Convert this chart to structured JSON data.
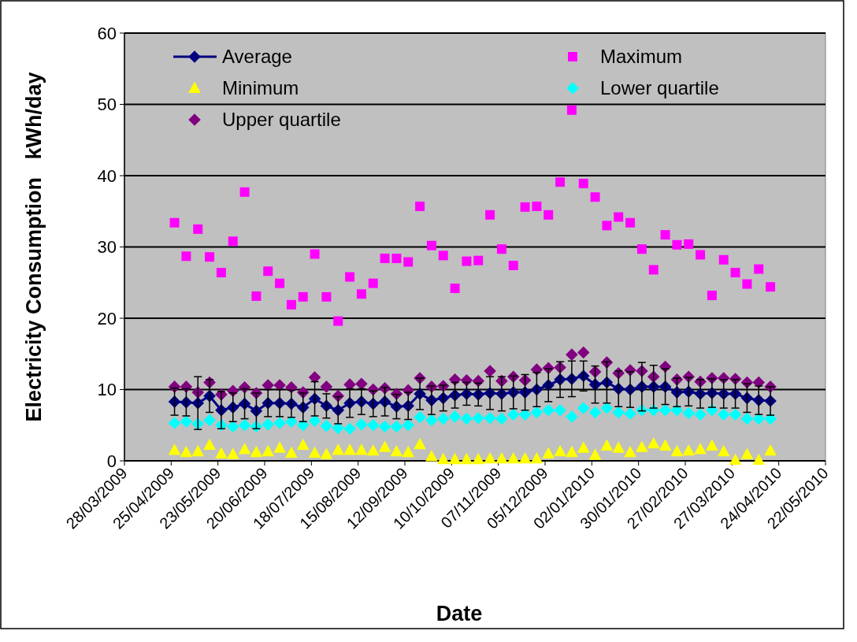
{
  "chart_data": {
    "type": "line",
    "xlabel": "Date",
    "ylabel": "Electricity Consumption   kWh/day",
    "x": [
      "2009-04-27",
      "2009-05-04",
      "2009-05-11",
      "2009-05-18",
      "2009-05-25",
      "2009-06-01",
      "2009-06-08",
      "2009-06-15",
      "2009-06-22",
      "2009-06-29",
      "2009-07-06",
      "2009-07-13",
      "2009-07-20",
      "2009-07-27",
      "2009-08-03",
      "2009-08-10",
      "2009-08-17",
      "2009-08-24",
      "2009-08-31",
      "2009-09-07",
      "2009-09-14",
      "2009-09-21",
      "2009-09-28",
      "2009-10-05",
      "2009-10-12",
      "2009-10-19",
      "2009-10-26",
      "2009-11-02",
      "2009-11-09",
      "2009-11-16",
      "2009-11-23",
      "2009-11-30",
      "2009-12-07",
      "2009-12-14",
      "2009-12-21",
      "2009-12-28",
      "2010-01-04",
      "2010-01-11",
      "2010-01-18",
      "2010-01-25",
      "2010-02-01",
      "2010-02-08",
      "2010-02-15",
      "2010-02-22",
      "2010-03-01",
      "2010-03-08",
      "2010-03-15",
      "2010-03-22",
      "2010-03-29",
      "2010-04-05",
      "2010-04-12",
      "2010-04-19"
    ],
    "series": [
      {
        "name": "Average",
        "marker": "diamond",
        "color": "#000080",
        "values": [
          8.3,
          8.2,
          8.1,
          9.1,
          7.1,
          7.5,
          8.0,
          7.0,
          8.1,
          8.1,
          8.0,
          7.5,
          8.7,
          7.7,
          7.1,
          8.1,
          8.3,
          8.0,
          8.3,
          7.6,
          7.7,
          9.4,
          8.5,
          8.8,
          9.2,
          9.4,
          9.3,
          9.5,
          9.4,
          9.6,
          9.6,
          10.0,
          10.6,
          11.4,
          11.5,
          11.9,
          10.7,
          11.0,
          10.1,
          10.0,
          10.4,
          10.4,
          10.4,
          9.6,
          9.7,
          9.4,
          9.5,
          9.4,
          9.4,
          8.8,
          8.5,
          8.4
        ],
        "errors": [
          1.9,
          1.9,
          3.7,
          2.3,
          2.6,
          2.0,
          2.1,
          2.5,
          1.9,
          1.9,
          1.9,
          2.0,
          2.4,
          1.7,
          1.9,
          2.0,
          1.8,
          1.8,
          2.0,
          1.7,
          1.9,
          2.2,
          2.0,
          1.8,
          1.8,
          1.6,
          1.6,
          2.3,
          2.4,
          2.3,
          2.5,
          2.4,
          2.3,
          2.5,
          2.5,
          2.1,
          2.6,
          2.9,
          2.5,
          2.5,
          3.4,
          3.0,
          2.5,
          2.0,
          2.0,
          2.0,
          2.0,
          2.0,
          2.0,
          2.0,
          2.0,
          2.0
        ]
      },
      {
        "name": "Maximum",
        "type": "scatter",
        "marker": "square",
        "color": "#ff00ff",
        "values": [
          33.4,
          28.7,
          32.5,
          28.6,
          26.4,
          30.8,
          37.7,
          23.1,
          26.6,
          24.9,
          21.9,
          23.0,
          29.0,
          23.0,
          19.6,
          25.8,
          23.4,
          24.9,
          28.4,
          28.4,
          27.9,
          35.7,
          30.2,
          28.8,
          24.2,
          28.0,
          28.1,
          34.5,
          29.7,
          27.4,
          35.6,
          35.7,
          34.5,
          39.1,
          49.2,
          38.9,
          37.0,
          33.0,
          34.2,
          33.4,
          29.7,
          26.8,
          31.7,
          30.3,
          30.4,
          28.9,
          23.2,
          28.2,
          26.4,
          24.8,
          26.9,
          24.4
        ]
      },
      {
        "name": "Minimum",
        "type": "scatter",
        "marker": "triangle",
        "color": "#ffff00",
        "values": [
          1.5,
          1.2,
          1.3,
          2.2,
          1.0,
          0.9,
          1.6,
          1.2,
          1.3,
          1.8,
          1.1,
          2.2,
          1.1,
          0.9,
          1.5,
          1.5,
          1.5,
          1.4,
          1.9,
          1.3,
          1.2,
          2.3,
          0.6,
          0.2,
          0.2,
          0.2,
          0.2,
          0.3,
          0.3,
          0.3,
          0.3,
          0.3,
          1.0,
          1.3,
          1.2,
          1.8,
          0.8,
          2.1,
          1.8,
          1.2,
          1.9,
          2.4,
          2.1,
          1.3,
          1.4,
          1.6,
          2.1,
          1.3,
          0.1,
          0.9,
          0.1,
          1.4
        ]
      },
      {
        "name": "Lower quartile",
        "type": "scatter",
        "marker": "diamond",
        "color": "#00ffff",
        "values": [
          5.3,
          5.5,
          5.2,
          5.7,
          5.0,
          4.8,
          5.0,
          4.8,
          5.1,
          5.3,
          5.5,
          5.0,
          5.6,
          4.9,
          4.6,
          4.5,
          5.1,
          5.0,
          4.8,
          4.8,
          5.0,
          6.1,
          5.7,
          5.9,
          6.2,
          5.9,
          6.0,
          6.0,
          5.9,
          6.5,
          6.5,
          6.8,
          7.1,
          7.1,
          6.2,
          7.4,
          6.8,
          7.4,
          6.8,
          6.6,
          7.1,
          7.1,
          7.1,
          7.1,
          6.7,
          6.5,
          7.1,
          6.5,
          6.5,
          5.9,
          5.9,
          5.9
        ]
      },
      {
        "name": "Upper quartile",
        "type": "scatter",
        "marker": "diamond",
        "color": "#800080",
        "values": [
          10.4,
          10.4,
          9.6,
          11.0,
          9.3,
          9.8,
          10.3,
          9.5,
          10.6,
          10.6,
          10.3,
          9.6,
          11.7,
          10.4,
          9.1,
          10.7,
          10.8,
          10.0,
          10.2,
          9.4,
          9.9,
          11.6,
          10.4,
          10.5,
          11.4,
          11.3,
          11.2,
          12.6,
          11.2,
          11.8,
          11.3,
          12.8,
          13.0,
          13.1,
          14.9,
          15.2,
          12.5,
          13.8,
          12.3,
          12.7,
          12.6,
          11.8,
          13.2,
          11.4,
          11.8,
          11.1,
          11.6,
          11.6,
          11.5,
          11.0,
          11.0,
          10.4
        ]
      }
    ],
    "xlim": [
      "2009-03-28",
      "2010-05-22"
    ],
    "xticks": [
      {
        "value": "2009-03-28",
        "label": "28/03/2009"
      },
      {
        "value": "2009-04-25",
        "label": "25/04/2009"
      },
      {
        "value": "2009-05-23",
        "label": "23/05/2009"
      },
      {
        "value": "2009-06-20",
        "label": "20/06/2009"
      },
      {
        "value": "2009-07-18",
        "label": "18/07/2009"
      },
      {
        "value": "2009-08-15",
        "label": "15/08/2009"
      },
      {
        "value": "2009-09-12",
        "label": "12/09/2009"
      },
      {
        "value": "2009-10-10",
        "label": "10/10/2009"
      },
      {
        "value": "2009-11-07",
        "label": "07/11/2009"
      },
      {
        "value": "2009-12-05",
        "label": "05/12/2009"
      },
      {
        "value": "2010-01-02",
        "label": "02/01/2010"
      },
      {
        "value": "2010-01-30",
        "label": "30/01/2010"
      },
      {
        "value": "2010-02-27",
        "label": "27/02/2010"
      },
      {
        "value": "2010-03-27",
        "label": "27/03/2010"
      },
      {
        "value": "2010-04-24",
        "label": "24/04/2010"
      },
      {
        "value": "2010-05-22",
        "label": "22/05/2010"
      }
    ],
    "ylim": [
      0,
      60
    ],
    "yticks": [
      0,
      10,
      20,
      30,
      40,
      50,
      60
    ],
    "grid": "y",
    "legend": "top"
  }
}
